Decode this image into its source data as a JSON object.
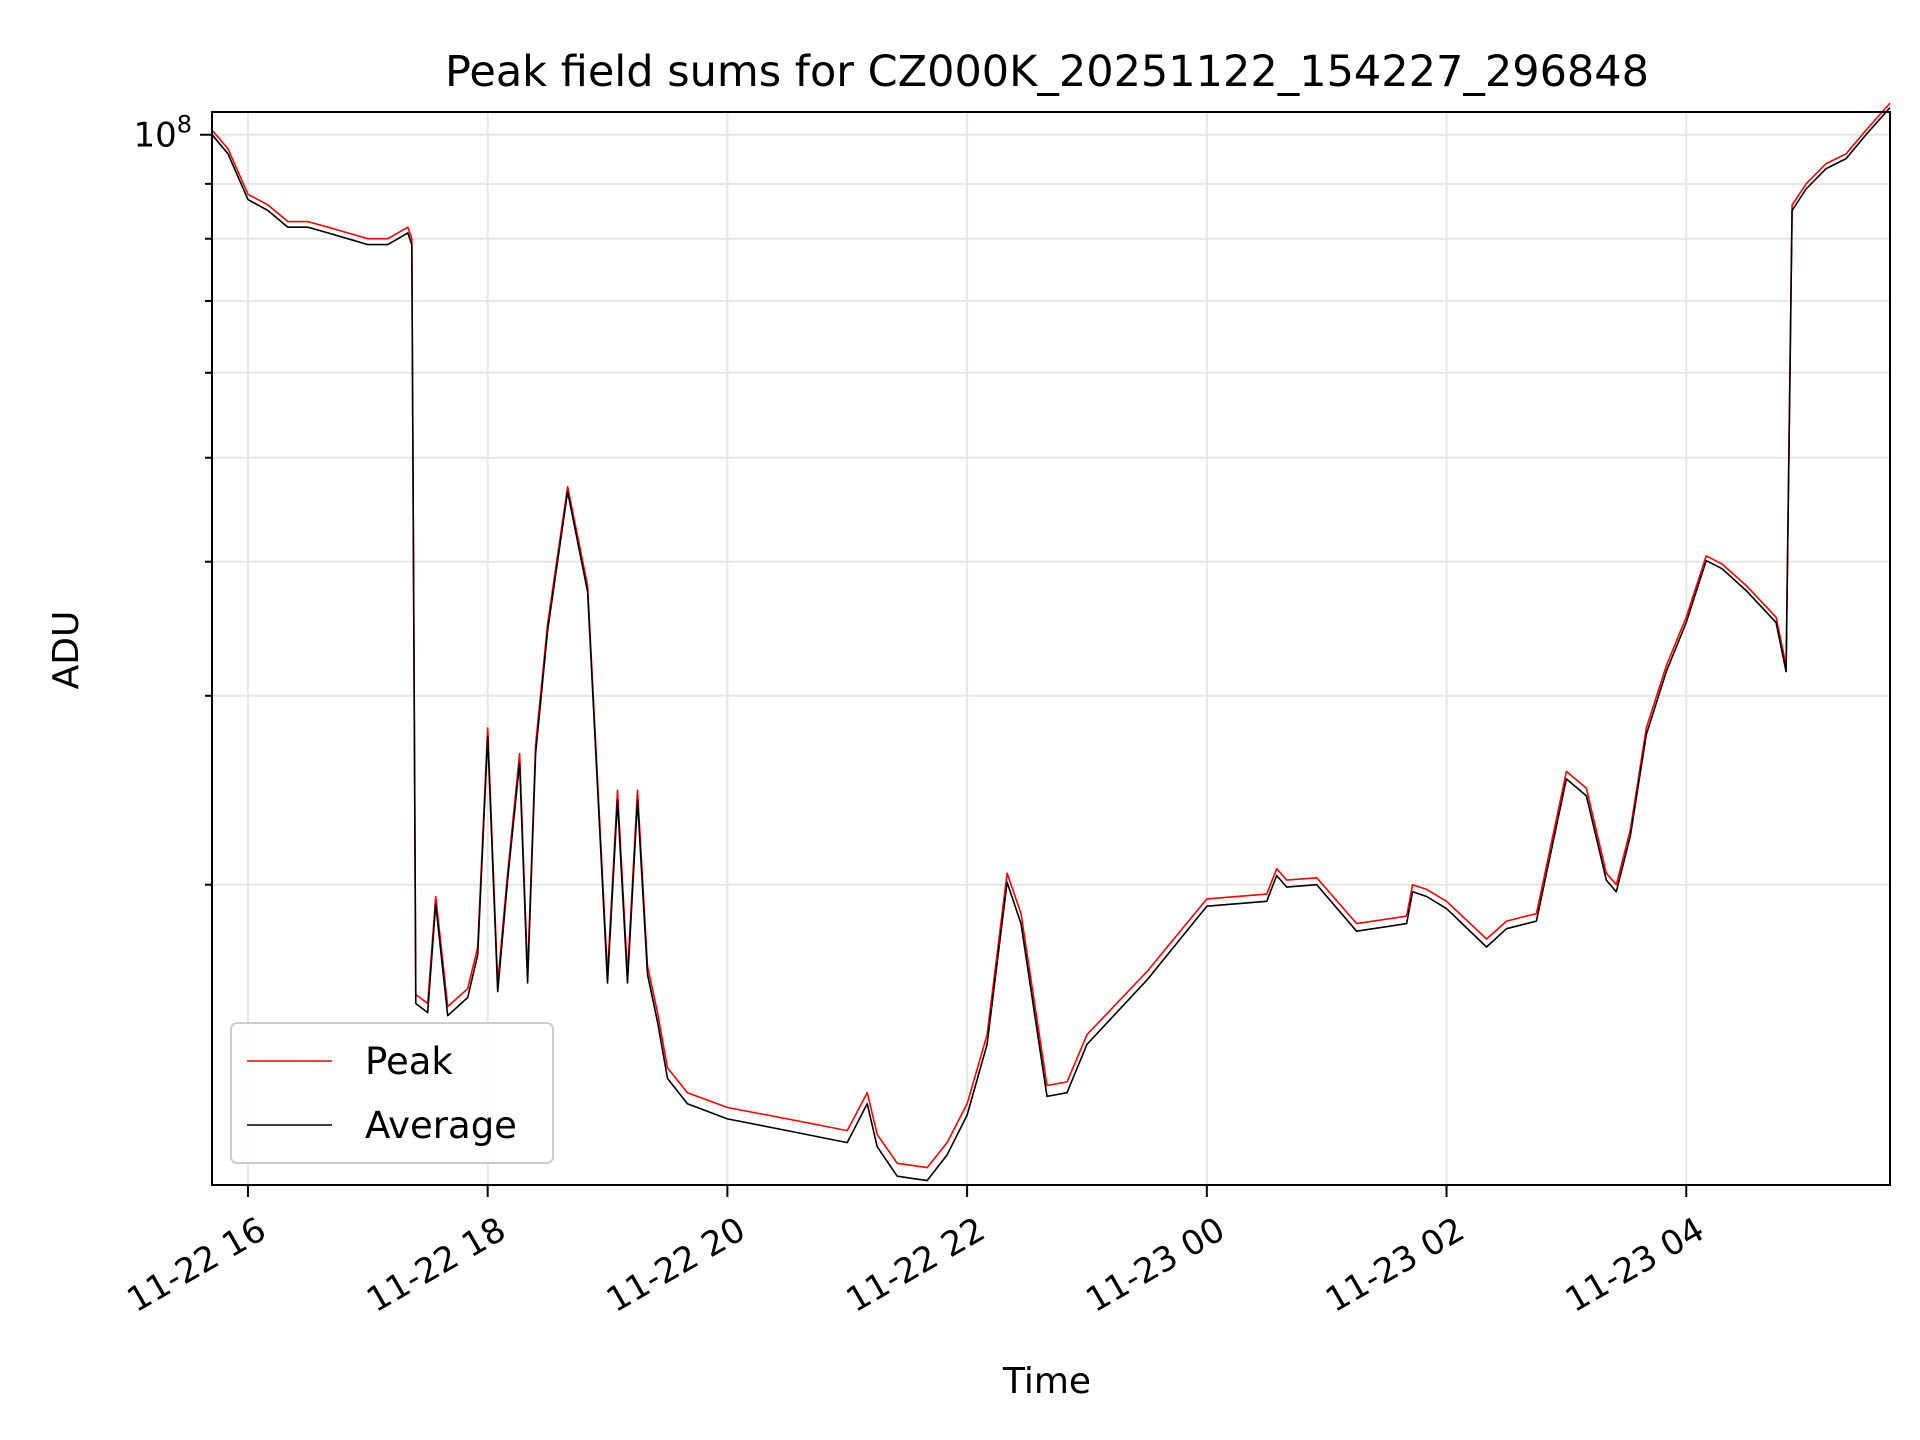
{
  "chart_data": {
    "type": "line",
    "title": "Peak field sums for CZ000K_20251122_154227_296848",
    "xlabel": "Time",
    "ylabel": "ADU",
    "yscale": "log",
    "ylim": [
      10500000,
      105000000
    ],
    "xlim": [
      "2025-11-22 15:42",
      "2025-11-23 05:42"
    ],
    "grid": true,
    "legend_position": "lower-left",
    "x_ticks": [
      "11-22 16",
      "11-22 18",
      "11-22 20",
      "11-22 22",
      "11-23 00",
      "11-23 02",
      "11-23 04"
    ],
    "y_tick_label": "10^8",
    "colors": {
      "Peak": "#ff0000",
      "Average": "#000000"
    },
    "series": [
      {
        "name": "Peak",
        "x": [
          "2025-11-22 15:42",
          "2025-11-22 15:50",
          "2025-11-22 16:00",
          "2025-11-22 16:10",
          "2025-11-22 16:20",
          "2025-11-22 16:30",
          "2025-11-22 16:40",
          "2025-11-22 16:50",
          "2025-11-22 17:00",
          "2025-11-22 17:10",
          "2025-11-22 17:20",
          "2025-11-22 17:22",
          "2025-11-22 17:24",
          "2025-11-22 17:30",
          "2025-11-22 17:34",
          "2025-11-22 17:40",
          "2025-11-22 17:50",
          "2025-11-22 17:55",
          "2025-11-22 18:00",
          "2025-11-22 18:05",
          "2025-11-22 18:10",
          "2025-11-22 18:16",
          "2025-11-22 18:20",
          "2025-11-22 18:24",
          "2025-11-22 18:30",
          "2025-11-22 18:40",
          "2025-11-22 18:50",
          "2025-11-22 19:00",
          "2025-11-22 19:05",
          "2025-11-22 19:10",
          "2025-11-22 19:15",
          "2025-11-22 19:20",
          "2025-11-22 19:25",
          "2025-11-22 19:30",
          "2025-11-22 19:40",
          "2025-11-22 20:00",
          "2025-11-22 20:30",
          "2025-11-22 21:00",
          "2025-11-22 21:10",
          "2025-11-22 21:15",
          "2025-11-22 21:25",
          "2025-11-22 21:40",
          "2025-11-22 21:50",
          "2025-11-22 22:00",
          "2025-11-22 22:10",
          "2025-11-22 22:20",
          "2025-11-22 22:27",
          "2025-11-22 22:40",
          "2025-11-22 22:50",
          "2025-11-22 23:00",
          "2025-11-22 23:30",
          "2025-11-23 00:00",
          "2025-11-23 00:30",
          "2025-11-23 00:35",
          "2025-11-23 00:40",
          "2025-11-23 00:55",
          "2025-11-23 01:15",
          "2025-11-23 01:40",
          "2025-11-23 01:43",
          "2025-11-23 01:50",
          "2025-11-23 02:00",
          "2025-11-23 02:20",
          "2025-11-23 02:30",
          "2025-11-23 02:45",
          "2025-11-23 03:00",
          "2025-11-23 03:10",
          "2025-11-23 03:20",
          "2025-11-23 03:25",
          "2025-11-23 03:32",
          "2025-11-23 03:40",
          "2025-11-23 03:50",
          "2025-11-23 04:00",
          "2025-11-23 04:10",
          "2025-11-23 04:18",
          "2025-11-23 04:30",
          "2025-11-23 04:45",
          "2025-11-23 04:50",
          "2025-11-23 04:53",
          "2025-11-23 05:00",
          "2025-11-23 05:10",
          "2025-11-23 05:20",
          "2025-11-23 05:30",
          "2025-11-23 05:42"
        ],
        "y": [
          101000000,
          97000000,
          88000000,
          86000000,
          83000000,
          83000000,
          82000000,
          81000000,
          80000000,
          80000000,
          82000000,
          80000000,
          15800000,
          15500000,
          19500000,
          15400000,
          16000000,
          17500000,
          28000000,
          16200000,
          20500000,
          26500000,
          16500000,
          27000000,
          35000000,
          47000000,
          38000000,
          16500000,
          24500000,
          16500000,
          24500000,
          16800000,
          15200000,
          13500000,
          12800000,
          12400000,
          12100000,
          11800000,
          12800000,
          11700000,
          11000000,
          10900000,
          11500000,
          12500000,
          14500000,
          20500000,
          18800000,
          13000000,
          13100000,
          14500000,
          16600000,
          19400000,
          19600000,
          20700000,
          20200000,
          20300000,
          18400000,
          18700000,
          20000000,
          19800000,
          19300000,
          17800000,
          18500000,
          18800000,
          25500000,
          24600000,
          20500000,
          20000000,
          22500000,
          28000000,
          32000000,
          35500000,
          40500000,
          39800000,
          38000000,
          35500000,
          32000000,
          86000000,
          90000000,
          94000000,
          96000000,
          101000000,
          107000000
        ]
      },
      {
        "name": "Average",
        "x": [
          "2025-11-22 15:42",
          "2025-11-22 15:50",
          "2025-11-22 16:00",
          "2025-11-22 16:10",
          "2025-11-22 16:20",
          "2025-11-22 16:30",
          "2025-11-22 16:40",
          "2025-11-22 16:50",
          "2025-11-22 17:00",
          "2025-11-22 17:10",
          "2025-11-22 17:20",
          "2025-11-22 17:22",
          "2025-11-22 17:24",
          "2025-11-22 17:30",
          "2025-11-22 17:34",
          "2025-11-22 17:40",
          "2025-11-22 17:50",
          "2025-11-22 17:55",
          "2025-11-22 18:00",
          "2025-11-22 18:05",
          "2025-11-22 18:10",
          "2025-11-22 18:16",
          "2025-11-22 18:20",
          "2025-11-22 18:24",
          "2025-11-22 18:30",
          "2025-11-22 18:40",
          "2025-11-22 18:50",
          "2025-11-22 19:00",
          "2025-11-22 19:05",
          "2025-11-22 19:10",
          "2025-11-22 19:15",
          "2025-11-22 19:20",
          "2025-11-22 19:25",
          "2025-11-22 19:30",
          "2025-11-22 19:40",
          "2025-11-22 20:00",
          "2025-11-22 20:30",
          "2025-11-22 21:00",
          "2025-11-22 21:10",
          "2025-11-22 21:15",
          "2025-11-22 21:25",
          "2025-11-22 21:40",
          "2025-11-22 21:50",
          "2025-11-22 22:00",
          "2025-11-22 22:10",
          "2025-11-22 22:20",
          "2025-11-22 22:27",
          "2025-11-22 22:40",
          "2025-11-22 22:50",
          "2025-11-22 23:00",
          "2025-11-22 23:30",
          "2025-11-23 00:00",
          "2025-11-23 00:30",
          "2025-11-23 00:35",
          "2025-11-23 00:40",
          "2025-11-23 00:55",
          "2025-11-23 01:15",
          "2025-11-23 01:40",
          "2025-11-23 01:43",
          "2025-11-23 01:50",
          "2025-11-23 02:00",
          "2025-11-23 02:20",
          "2025-11-23 02:30",
          "2025-11-23 02:45",
          "2025-11-23 03:00",
          "2025-11-23 03:10",
          "2025-11-23 03:20",
          "2025-11-23 03:25",
          "2025-11-23 03:32",
          "2025-11-23 03:40",
          "2025-11-23 03:50",
          "2025-11-23 04:00",
          "2025-11-23 04:10",
          "2025-11-23 04:18",
          "2025-11-23 04:30",
          "2025-11-23 04:45",
          "2025-11-23 04:50",
          "2025-11-23 04:53",
          "2025-11-23 05:00",
          "2025-11-23 05:10",
          "2025-11-23 05:20",
          "2025-11-23 05:30",
          "2025-11-23 05:42"
        ],
        "y": [
          100000000,
          96000000,
          87000000,
          85000000,
          82000000,
          82000000,
          81000000,
          80000000,
          79000000,
          79000000,
          81000000,
          79000000,
          15500000,
          15200000,
          19200000,
          15100000,
          15700000,
          17200000,
          27500000,
          15900000,
          20200000,
          26000000,
          16200000,
          26500000,
          34500000,
          46500000,
          37500000,
          16200000,
          24000000,
          16200000,
          24000000,
          16500000,
          14900000,
          13200000,
          12500000,
          12100000,
          11800000,
          11500000,
          12500000,
          11400000,
          10700000,
          10600000,
          11200000,
          12200000,
          14200000,
          20100000,
          18400000,
          12700000,
          12800000,
          14200000,
          16300000,
          19100000,
          19300000,
          20400000,
          19900000,
          20000000,
          18100000,
          18400000,
          19700000,
          19500000,
          19000000,
          17500000,
          18200000,
          18500000,
          25100000,
          24200000,
          20200000,
          19700000,
          22200000,
          27600000,
          31600000,
          35100000,
          40100000,
          39400000,
          37600000,
          35100000,
          31600000,
          85000000,
          89000000,
          93000000,
          95000000,
          100000000,
          106000000
        ]
      }
    ]
  }
}
